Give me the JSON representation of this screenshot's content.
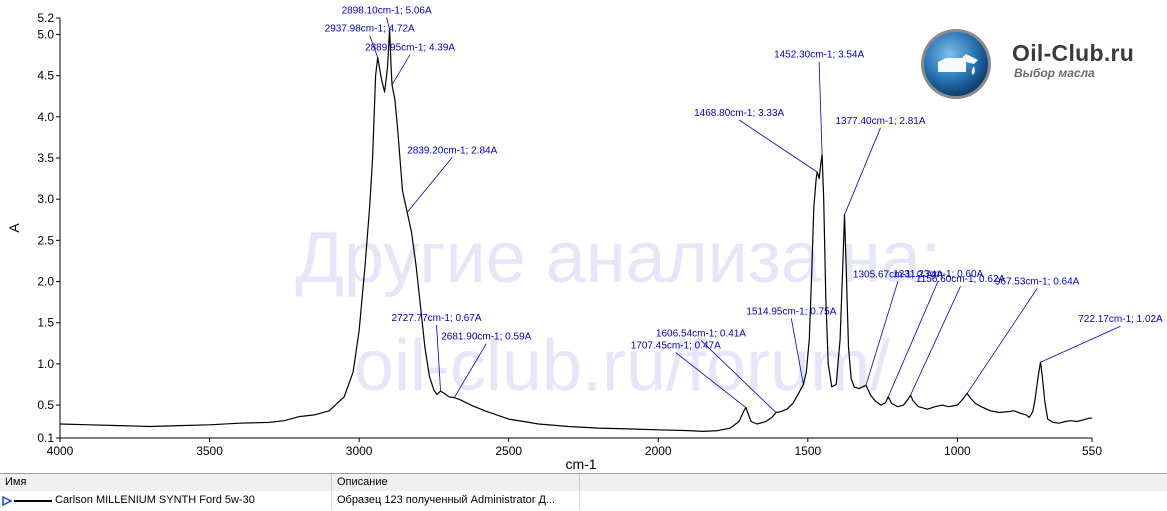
{
  "chart_data": {
    "type": "line",
    "xlabel": "cm-1",
    "ylabel": "A",
    "xlim": [
      4000,
      550
    ],
    "ylim": [
      0.1,
      5.2
    ],
    "x_ticks": [
      4000,
      3500,
      3000,
      2500,
      2000,
      1500,
      1000,
      550
    ],
    "y_ticks": [
      0.1,
      0.5,
      1.0,
      1.5,
      2.0,
      2.5,
      3.0,
      3.5,
      4.0,
      4.5,
      5.0,
      5.2
    ],
    "x_tick_labels": [
      "4000",
      "3500",
      "3000",
      "2500",
      "2000",
      "1500",
      "1000",
      "550"
    ],
    "y_tick_labels": [
      "0.1",
      "0.5",
      "1.0",
      "1.5",
      "2.0",
      "2.5",
      "3.0",
      "3.5",
      "4.0",
      "4.5",
      "5.0",
      "5.2"
    ],
    "series": [
      {
        "name": "Carlson MILLENIUM SYNTH Ford 5w-30",
        "color": "#000000",
        "points": [
          [
            4000,
            0.27
          ],
          [
            3900,
            0.26
          ],
          [
            3800,
            0.25
          ],
          [
            3700,
            0.24
          ],
          [
            3600,
            0.25
          ],
          [
            3500,
            0.26
          ],
          [
            3400,
            0.28
          ],
          [
            3300,
            0.29
          ],
          [
            3250,
            0.31
          ],
          [
            3200,
            0.36
          ],
          [
            3150,
            0.38
          ],
          [
            3100,
            0.43
          ],
          [
            3050,
            0.6
          ],
          [
            3020,
            0.9
          ],
          [
            3000,
            1.4
          ],
          [
            2980,
            2.2
          ],
          [
            2965,
            2.9
          ],
          [
            2955,
            3.5
          ],
          [
            2945,
            4.5
          ],
          [
            2937.98,
            4.72
          ],
          [
            2925,
            4.45
          ],
          [
            2915,
            4.3
          ],
          [
            2905,
            4.6
          ],
          [
            2898.1,
            5.06
          ],
          [
            2893,
            4.6
          ],
          [
            2889.95,
            4.39
          ],
          [
            2880,
            4.2
          ],
          [
            2870,
            3.8
          ],
          [
            2855,
            3.1
          ],
          [
            2839.2,
            2.84
          ],
          [
            2825,
            2.6
          ],
          [
            2810,
            2.2
          ],
          [
            2795,
            1.7
          ],
          [
            2780,
            1.2
          ],
          [
            2765,
            0.85
          ],
          [
            2750,
            0.68
          ],
          [
            2740,
            0.63
          ],
          [
            2727.77,
            0.67
          ],
          [
            2715,
            0.64
          ],
          [
            2700,
            0.6
          ],
          [
            2681.9,
            0.59
          ],
          [
            2660,
            0.56
          ],
          [
            2620,
            0.49
          ],
          [
            2580,
            0.43
          ],
          [
            2540,
            0.38
          ],
          [
            2500,
            0.33
          ],
          [
            2450,
            0.3
          ],
          [
            2400,
            0.27
          ],
          [
            2300,
            0.24
          ],
          [
            2200,
            0.22
          ],
          [
            2100,
            0.21
          ],
          [
            2000,
            0.2
          ],
          [
            1900,
            0.19
          ],
          [
            1850,
            0.18
          ],
          [
            1800,
            0.19
          ],
          [
            1760,
            0.22
          ],
          [
            1730,
            0.3
          ],
          [
            1715,
            0.42
          ],
          [
            1707.45,
            0.47
          ],
          [
            1700,
            0.4
          ],
          [
            1690,
            0.3
          ],
          [
            1670,
            0.27
          ],
          [
            1640,
            0.3
          ],
          [
            1620,
            0.35
          ],
          [
            1606.54,
            0.41
          ],
          [
            1590,
            0.42
          ],
          [
            1570,
            0.45
          ],
          [
            1550,
            0.52
          ],
          [
            1530,
            0.65
          ],
          [
            1514.95,
            0.75
          ],
          [
            1505,
            0.9
          ],
          [
            1495,
            1.3
          ],
          [
            1487,
            2.1
          ],
          [
            1480,
            2.9
          ],
          [
            1472,
            3.25
          ],
          [
            1468.8,
            3.33
          ],
          [
            1462,
            3.25
          ],
          [
            1456,
            3.45
          ],
          [
            1452.3,
            3.54
          ],
          [
            1447,
            3.0
          ],
          [
            1440,
            1.8
          ],
          [
            1432,
            1.0
          ],
          [
            1420,
            0.72
          ],
          [
            1405,
            0.75
          ],
          [
            1392,
            1.3
          ],
          [
            1382,
            2.3
          ],
          [
            1377.4,
            2.81
          ],
          [
            1372,
            2.2
          ],
          [
            1364,
            1.2
          ],
          [
            1355,
            0.82
          ],
          [
            1345,
            0.72
          ],
          [
            1330,
            0.7
          ],
          [
            1318,
            0.72
          ],
          [
            1305.67,
            0.74
          ],
          [
            1290,
            0.62
          ],
          [
            1275,
            0.55
          ],
          [
            1255,
            0.5
          ],
          [
            1240,
            0.53
          ],
          [
            1231.23,
            0.6
          ],
          [
            1220,
            0.52
          ],
          [
            1200,
            0.48
          ],
          [
            1180,
            0.5
          ],
          [
            1165,
            0.57
          ],
          [
            1156.6,
            0.62
          ],
          [
            1148,
            0.55
          ],
          [
            1130,
            0.48
          ],
          [
            1100,
            0.45
          ],
          [
            1075,
            0.48
          ],
          [
            1050,
            0.5
          ],
          [
            1030,
            0.48
          ],
          [
            1000,
            0.5
          ],
          [
            985,
            0.56
          ],
          [
            967.53,
            0.64
          ],
          [
            955,
            0.58
          ],
          [
            940,
            0.52
          ],
          [
            920,
            0.48
          ],
          [
            890,
            0.43
          ],
          [
            860,
            0.41
          ],
          [
            830,
            0.42
          ],
          [
            810,
            0.43
          ],
          [
            790,
            0.4
          ],
          [
            770,
            0.38
          ],
          [
            760,
            0.35
          ],
          [
            748,
            0.42
          ],
          [
            740,
            0.58
          ],
          [
            730,
            0.85
          ],
          [
            722.17,
            1.02
          ],
          [
            716,
            0.85
          ],
          [
            708,
            0.55
          ],
          [
            698,
            0.33
          ],
          [
            680,
            0.29
          ],
          [
            660,
            0.28
          ],
          [
            640,
            0.3
          ],
          [
            620,
            0.31
          ],
          [
            600,
            0.3
          ],
          [
            580,
            0.32
          ],
          [
            560,
            0.34
          ],
          [
            550,
            0.34
          ]
        ]
      }
    ],
    "annotations": [
      {
        "text": "2898.10cm-1; 5.06A",
        "x": 2898.1,
        "y": 5.06
      },
      {
        "text": "2937.98cm-1; 4.72A",
        "x": 2937.98,
        "y": 4.72
      },
      {
        "text": "2889.95cm-1; 4.39A",
        "x": 2889.95,
        "y": 4.39
      },
      {
        "text": "2839.20cm-1; 2.84A",
        "x": 2839.2,
        "y": 2.84
      },
      {
        "text": "2727.77cm-1; 0.67A",
        "x": 2727.77,
        "y": 0.67
      },
      {
        "text": "2681.90cm-1; 0.59A",
        "x": 2681.9,
        "y": 0.59
      },
      {
        "text": "1707.45cm-1; 0.47A",
        "x": 1707.45,
        "y": 0.47
      },
      {
        "text": "1606.54cm-1; 0.41A",
        "x": 1606.54,
        "y": 0.41
      },
      {
        "text": "1514.95cm-1; 0.75A",
        "x": 1514.95,
        "y": 0.75
      },
      {
        "text": "1468.80cm-1; 3.33A",
        "x": 1468.8,
        "y": 3.33
      },
      {
        "text": "1452.30cm-1; 3.54A",
        "x": 1452.3,
        "y": 3.54
      },
      {
        "text": "1377.40cm-1; 2.81A",
        "x": 1377.4,
        "y": 2.81
      },
      {
        "text": "1305.67cm-1; 0.74A",
        "x": 1305.67,
        "y": 0.74
      },
      {
        "text": "1231.23cm-1; 0.60A",
        "x": 1231.23,
        "y": 0.6
      },
      {
        "text": "1156.60cm-1; 0.62A",
        "x": 1156.6,
        "y": 0.62
      },
      {
        "text": "967.53cm-1; 0.64A",
        "x": 967.53,
        "y": 0.64
      },
      {
        "text": "722.17cm-1; 1.02A",
        "x": 722.17,
        "y": 1.02
      }
    ],
    "watermark": [
      "Другие анализа на:",
      "oil-club.ru/forum/"
    ],
    "annotation_color": "#0000cc",
    "watermark_color": "#e6e6fa"
  },
  "logo": {
    "title": "Oil-Club.ru",
    "subtitle": "Выбор масла"
  },
  "table": {
    "headers": [
      "Имя",
      "Описание"
    ],
    "rows": [
      {
        "name": "Carlson MILLENIUM SYNTH Ford 5w-30",
        "description": "Образец 123 полученный Administrator Д..."
      }
    ]
  }
}
